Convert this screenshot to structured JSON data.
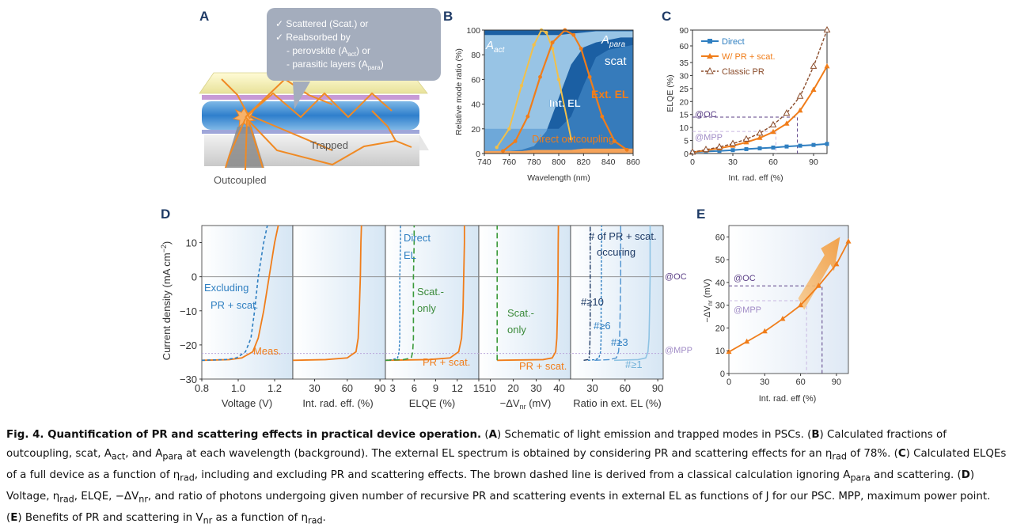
{
  "panel_labels": {
    "a": "A",
    "b": "B",
    "c": "C",
    "d": "D",
    "e": "E"
  },
  "panel_a": {
    "callout": [
      "✓ Scattered (Scat.) or",
      "✓ Reabsorbed by",
      "- perovskite (A",
      "- parasitic layers (A"
    ],
    "callout_sub_act": "act",
    "callout_sub_para": "para",
    "callout_tail_act": ") or",
    "callout_tail_para": ")",
    "trapped": "Trapped",
    "outcoupled": "Outcoupled"
  },
  "chart_data": [
    {
      "panel": "B",
      "type": "area",
      "ylabel": "Relative mode ratio (%)",
      "xlabel": "Wavelength (nm)",
      "xlim": [
        740,
        860
      ],
      "ylim": [
        0,
        100
      ],
      "xticks": [
        "740",
        "760",
        "780",
        "800",
        "820",
        "840",
        "860"
      ],
      "yticks": [
        "0",
        "20",
        "40",
        "60",
        "80",
        "100"
      ],
      "region_labels": {
        "a_act": "A",
        "a_act_sub": "act",
        "a_para": "A",
        "a_para_sub": "para",
        "scat": "scat",
        "direct": "Direct outcoupling"
      },
      "series_labels": {
        "int_el": "Int. EL",
        "ext_el": "Ext. EL"
      },
      "x": [
        740,
        750,
        760,
        770,
        780,
        790,
        800,
        810,
        820,
        830,
        840,
        850,
        860
      ],
      "boundaries": {
        "direct_top": [
          2,
          2,
          2,
          2,
          3,
          3,
          3,
          3,
          4,
          4,
          4,
          4,
          4
        ],
        "scat_low": [
          20,
          20,
          20,
          20,
          20,
          20,
          20,
          30,
          55,
          78,
          84,
          86,
          88
        ],
        "scat_high": [
          2,
          2,
          2,
          3,
          6,
          18,
          45,
          72,
          86,
          90,
          92,
          94,
          94
        ],
        "para_low": [
          96,
          96,
          96,
          96,
          96,
          96,
          96,
          97,
          98,
          99,
          99,
          99,
          99
        ]
      },
      "series": [
        {
          "name": "Int. EL",
          "x": [
            750,
            760,
            770,
            780,
            786,
            790,
            795,
            800,
            810
          ],
          "values": [
            5,
            20,
            55,
            88,
            100,
            98,
            85,
            60,
            12
          ]
        },
        {
          "name": "Ext. EL",
          "x": [
            755,
            765,
            775,
            785,
            795,
            805,
            812,
            818,
            825,
            835,
            845,
            855
          ],
          "values": [
            2,
            10,
            30,
            62,
            90,
            100,
            96,
            85,
            62,
            30,
            10,
            3
          ]
        }
      ],
      "colors": {
        "int_el": "#f2c04a",
        "ext_el": "#f07d1a",
        "deep": "#1b5fa3",
        "mid": "#4d92cf",
        "light": "#9fc9e9"
      }
    },
    {
      "panel": "C",
      "type": "line",
      "ylabel": "ELQE (%)",
      "xlabel": "Int. rad. eff (%)",
      "xlim": [
        0,
        100
      ],
      "xticks": [
        "0",
        "30",
        "60",
        "90"
      ],
      "yticks": [
        "0",
        "5",
        "10",
        "15",
        "20",
        "25",
        "30",
        "35",
        "60",
        "90"
      ],
      "y_break": "non-uniform axis: 0–35 linear, then 60, 90",
      "annotations": {
        "oc": "@OC",
        "mpp": "@MPP"
      },
      "series": [
        {
          "name": "Direct",
          "x": [
            0,
            10,
            20,
            30,
            40,
            50,
            60,
            70,
            80,
            90,
            100
          ],
          "values": [
            0.5,
            0.8,
            1.0,
            1.3,
            1.7,
            2.0,
            2.3,
            2.7,
            3.0,
            3.3,
            3.7
          ]
        },
        {
          "name": "W/ PR + scat.",
          "x": [
            0,
            10,
            20,
            30,
            40,
            50,
            60,
            70,
            80,
            90,
            100
          ],
          "values": [
            0.5,
            1.2,
            2.0,
            3.0,
            4.3,
            6.0,
            8.3,
            11.5,
            16.5,
            24.5,
            33.5
          ]
        },
        {
          "name": "Classic PR",
          "x": [
            0,
            10,
            20,
            30,
            40,
            50,
            60,
            70,
            80,
            90,
            100
          ],
          "values": [
            0.5,
            1.5,
            2.5,
            3.8,
            5.5,
            7.8,
            11.0,
            15.5,
            22.0,
            33.5,
            90
          ]
        }
      ]
    },
    {
      "panel": "D",
      "type": "line",
      "ylabel": "Current density (mA cm",
      "ylabel_sup": "−2",
      "ylabel_tail": ")",
      "yticks": [
        "10",
        "0",
        "−10",
        "−20",
        "−30"
      ],
      "ylim": [
        -30,
        15
      ],
      "subplots": [
        {
          "xlabel": "Voltage (V)",
          "xticks": [
            "0.8",
            "1.0",
            "1.2"
          ],
          "labels": [
            "Excluding",
            "PR + scat.",
            "Meas."
          ]
        },
        {
          "xlabel": "Int. rad. eff. (%)",
          "xticks": [
            "30",
            "60",
            "90"
          ],
          "labels": []
        },
        {
          "xlabel": "ELQE (%)",
          "xticks": [
            "3",
            "6",
            "9",
            "12",
            "15"
          ],
          "labels": [
            "Direct",
            "EL",
            "Scat.-",
            "only",
            "PR + scat."
          ]
        },
        {
          "xlabel": "−ΔV",
          "xlabel_sub": "nr",
          "xlabel_tail": " (mV)",
          "xticks": [
            "10",
            "20",
            "30",
            "40"
          ],
          "labels": [
            "Scat.-",
            "only",
            "PR + scat."
          ]
        },
        {
          "xlabel": "Ratio in ext. EL (%)",
          "xticks": [
            "30",
            "60",
            "90"
          ],
          "labels": [
            "# of PR + scat.",
            "occuring",
            "#≥10",
            "#≥6",
            "#≥3",
            "#≥1"
          ]
        }
      ],
      "right_labels": {
        "oc": "@OC",
        "mpp": "@MPP"
      }
    },
    {
      "panel": "E",
      "type": "line",
      "ylabel": "−ΔV",
      "ylabel_sub": "nr",
      "ylabel_tail": " (mV)",
      "xlabel": "Int. rad. eff (%)",
      "xlim": [
        0,
        100
      ],
      "ylim": [
        0,
        65
      ],
      "xticks": [
        "0",
        "30",
        "60",
        "90"
      ],
      "yticks": [
        "0",
        "10",
        "20",
        "30",
        "40",
        "50",
        "60"
      ],
      "annotations": {
        "oc": "@OC",
        "mpp": "@MPP"
      },
      "series": [
        {
          "name": "",
          "x": [
            0,
            15,
            30,
            45,
            60,
            75,
            90,
            100
          ],
          "values": [
            9.5,
            14,
            18.5,
            24,
            30,
            38.5,
            48,
            58
          ]
        }
      ]
    }
  ],
  "caption": {
    "title": "Fig. 4. Quantification of PR and scattering effects in practical device operation.",
    "a_label": "A",
    "a_text": "Schematic of light emission and trapped modes in PSCs. (",
    "b_label": "B",
    "b_text": "Calculated fractions of outcoupling, scat, A",
    "b_sub1": "act",
    "b_mid": ", and A",
    "b_sub2": "para",
    "b_text2": " at each wavelength (background). The external EL spectrum is obtained by considering PR and scattering effects for an η",
    "b_sub3": "rad",
    "b_text3": " of 78%. (",
    "c_label": "C",
    "c_text": "Calculated ELQEs of a full device as a function of η",
    "c_sub": "rad",
    "c_text2": ", including and excluding PR and scattering effects. The brown dashed line is derived from a classical calculation ignoring A",
    "c_sub2": "para",
    "c_text3": " and scattering. (",
    "d_label": "D",
    "d_text": "Voltage, η",
    "d_sub": "rad",
    "d_text2": ", ELQE, −ΔV",
    "d_sub2": "nr",
    "d_text3": ", and ratio of photons undergoing given number of recursive PR and scattering events in external EL as functions of J for our PSC. MPP, maximum power point. (",
    "e_label": "E",
    "e_text": "Benefits of PR and scattering in V",
    "e_sub": "nr",
    "e_text2": " as a function of η",
    "e_sub2": "rad",
    "e_text3": "."
  }
}
